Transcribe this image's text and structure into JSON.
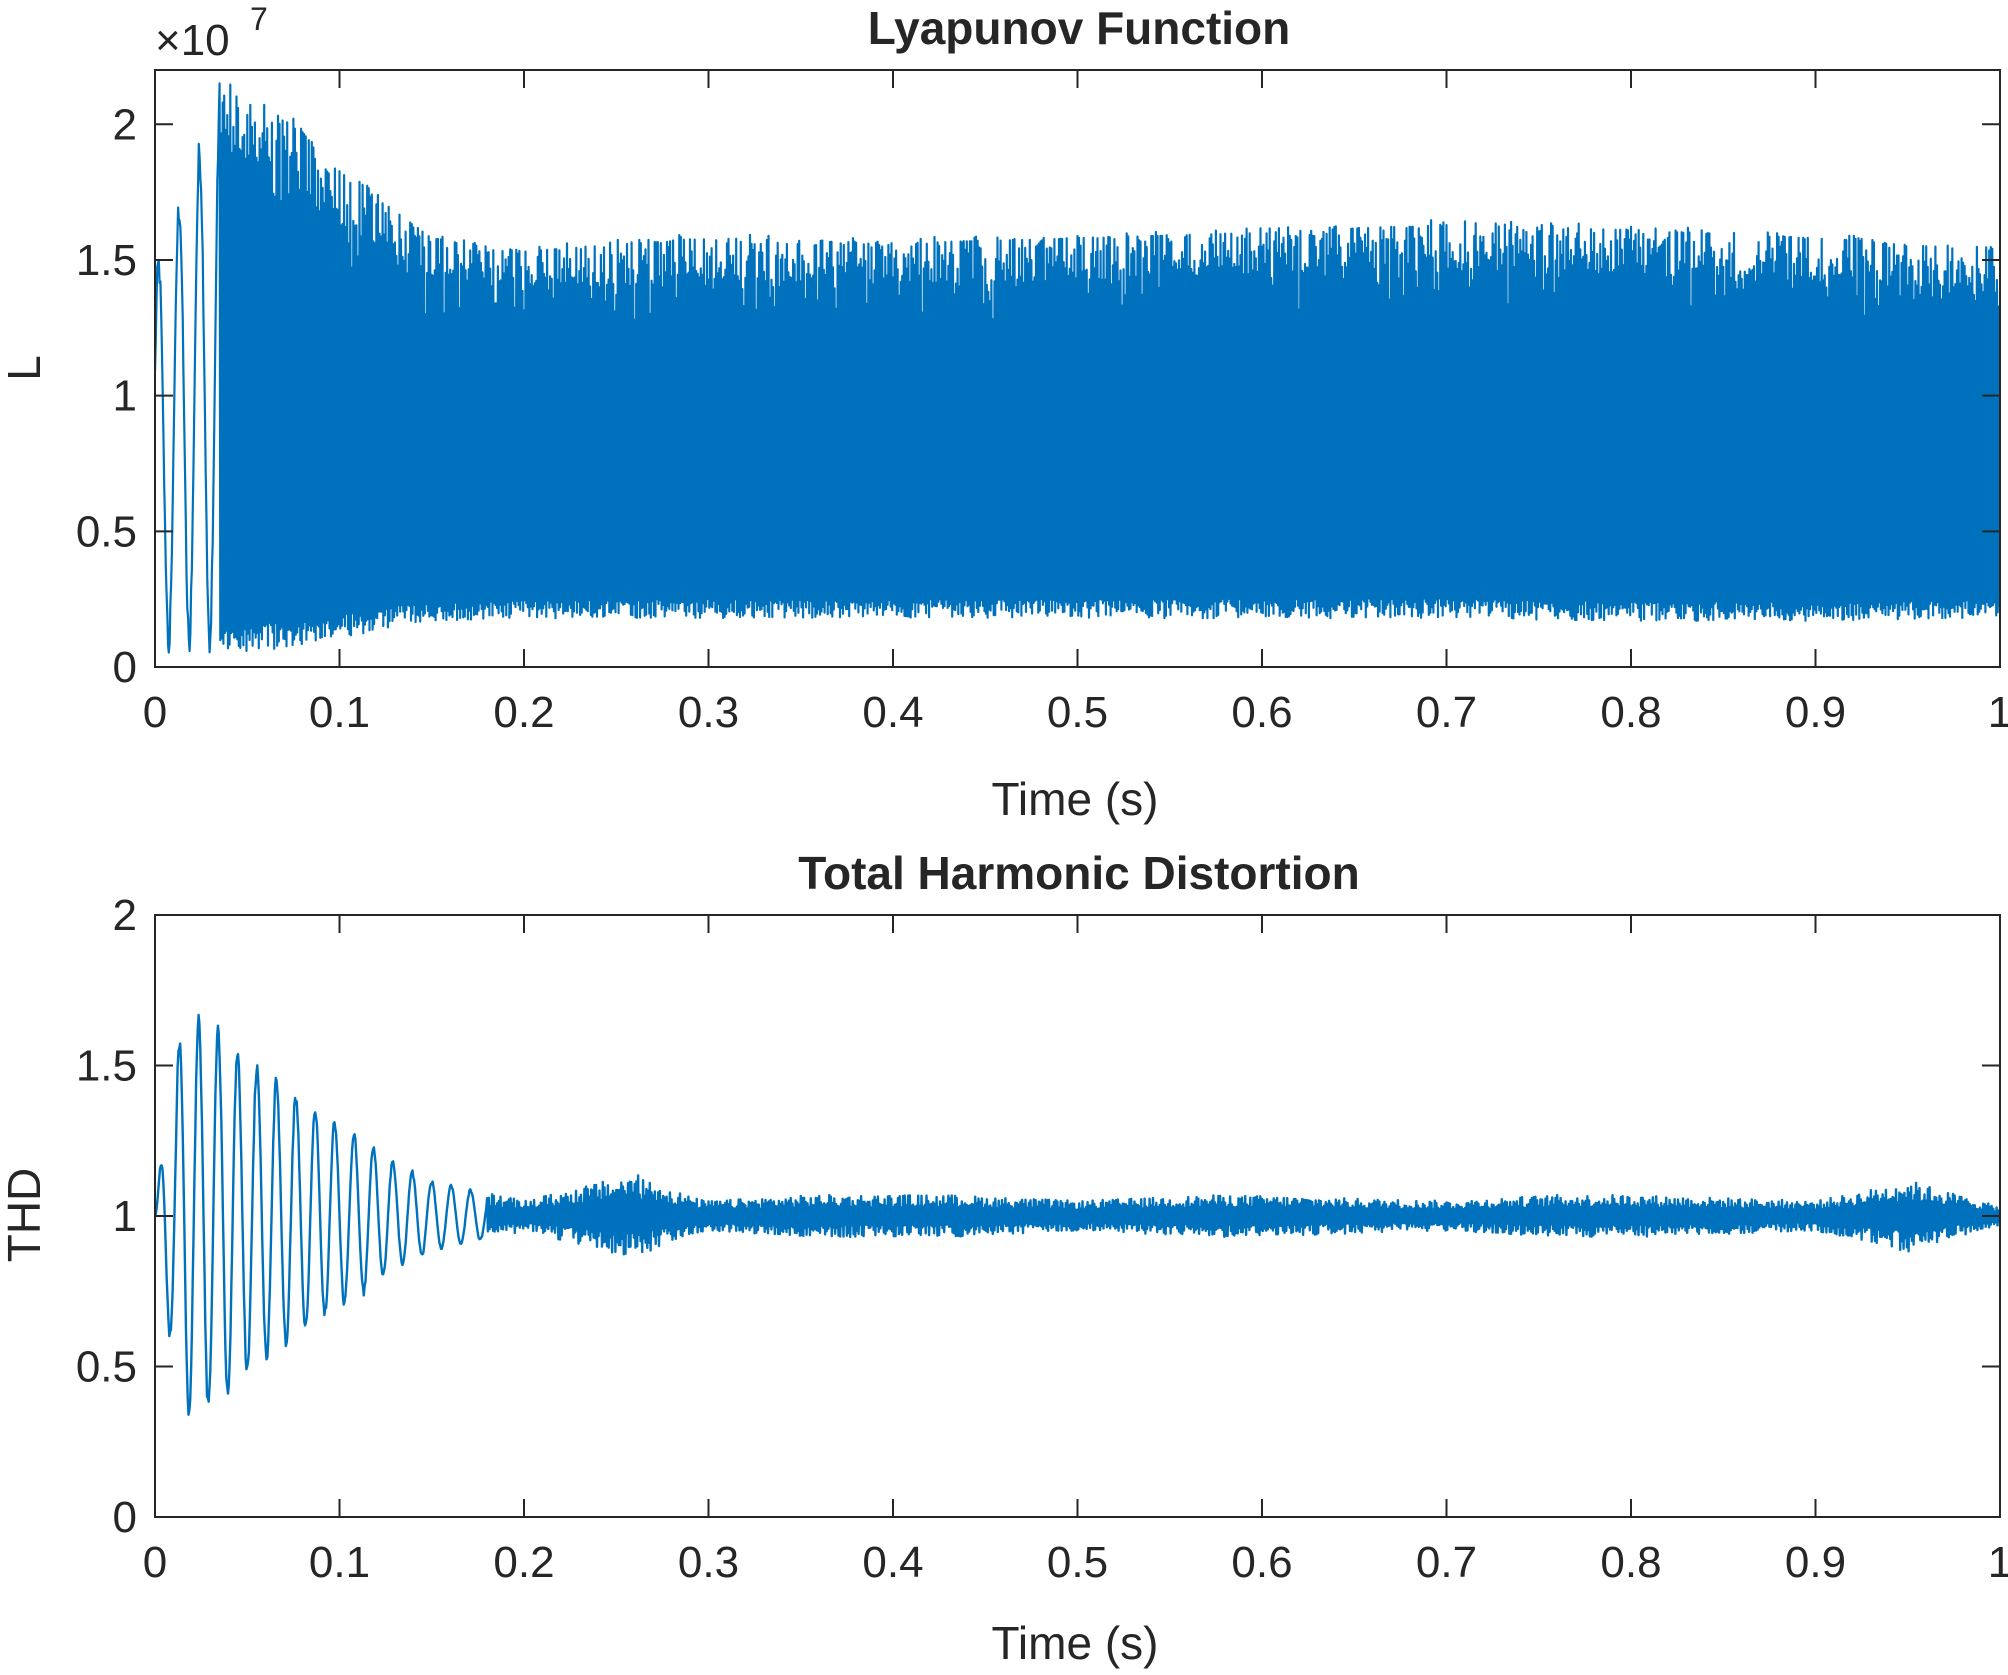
{
  "chart_data": [
    {
      "type": "line",
      "title": "Lyapunov Function",
      "xlabel": "Time (s)",
      "ylabel": "L",
      "xlim": [
        0,
        1
      ],
      "ylim": [
        0,
        22000000
      ],
      "y_exponent_label": "×10",
      "y_exponent_power": "7",
      "x_ticks": [
        "0",
        "0.1",
        "0.2",
        "0.3",
        "0.4",
        "0.5",
        "0.6",
        "0.7",
        "0.8",
        "0.9",
        "1"
      ],
      "y_ticks": [
        "0",
        "0.5",
        "1",
        "1.5",
        "2"
      ],
      "y_tick_values": [
        0,
        5000000,
        10000000,
        15000000,
        20000000
      ],
      "color": "#0072BD",
      "series": [
        {
          "name": "L",
          "description_of_envelope": "oscillating signal, upper envelope in data units (max) and lower envelope (min) sampled at t",
          "t": [
            0,
            0.01,
            0.02,
            0.03,
            0.035,
            0.05,
            0.07,
            0.09,
            0.11,
            0.13,
            0.15,
            0.2,
            0.3,
            0.4,
            0.5,
            0.6,
            0.7,
            0.8,
            0.9,
            1.0
          ],
          "max": [
            15000000,
            17000000,
            19000000,
            20500000,
            21800000,
            21000000,
            21000000,
            19000000,
            18000000,
            17000000,
            16000000,
            15500000,
            16000000,
            15800000,
            16000000,
            16200000,
            16500000,
            16300000,
            16000000,
            15500000
          ],
          "min": [
            0,
            500000,
            300000,
            300000,
            300000,
            500000,
            700000,
            1000000,
            1200000,
            1500000,
            1700000,
            1800000,
            1800000,
            1800000,
            1800000,
            1800000,
            1800000,
            1700000,
            1700000,
            1800000
          ]
        }
      ]
    },
    {
      "type": "line",
      "title": "Total Harmonic Distortion",
      "xlabel": "Time (s)",
      "ylabel": "THD",
      "xlim": [
        0,
        1
      ],
      "ylim": [
        0,
        2
      ],
      "x_ticks": [
        "0",
        "0.1",
        "0.2",
        "0.3",
        "0.4",
        "0.5",
        "0.6",
        "0.7",
        "0.8",
        "0.9",
        "1"
      ],
      "y_ticks": [
        "0",
        "0.5",
        "1",
        "1.5",
        "2"
      ],
      "y_tick_values": [
        0,
        0.5,
        1,
        1.5,
        2
      ],
      "color": "#0072BD",
      "series": [
        {
          "name": "THD",
          "description_of_envelope": "damped oscillation around 1, upper (max) and lower (min) envelope sampled at t",
          "t": [
            0,
            0.005,
            0.01,
            0.015,
            0.03,
            0.05,
            0.07,
            0.09,
            0.11,
            0.13,
            0.15,
            0.2,
            0.26,
            0.3,
            0.36,
            0.43,
            0.5,
            0.58,
            0.7,
            0.76,
            0.8,
            0.9,
            0.95,
            1.0
          ],
          "max": [
            1.0,
            1.2,
            1.45,
            1.68,
            1.67,
            1.55,
            1.45,
            1.35,
            1.28,
            1.16,
            1.1,
            1.05,
            1.14,
            1.04,
            1.07,
            1.06,
            1.04,
            1.07,
            1.04,
            1.06,
            1.06,
            1.04,
            1.12,
            1.03
          ],
          "min": [
            1.0,
            0.7,
            0.5,
            0.34,
            0.38,
            0.45,
            0.55,
            0.65,
            0.72,
            0.82,
            0.88,
            0.95,
            0.9,
            0.95,
            0.93,
            0.93,
            0.95,
            0.93,
            0.95,
            0.93,
            0.93,
            0.95,
            0.89,
            0.97
          ]
        }
      ]
    }
  ]
}
